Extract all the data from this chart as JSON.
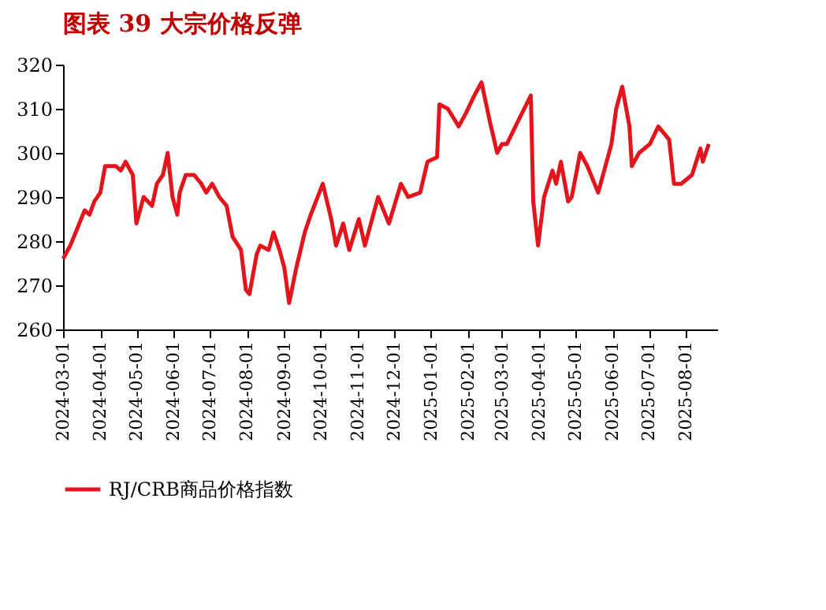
{
  "chart_data": {
    "type": "line",
    "title": "图表 39    大宗价格反弹",
    "x": [
      "2024-03-01",
      "2024-03-07",
      "2024-03-13",
      "2024-03-19",
      "2024-03-23",
      "2024-03-27",
      "2024-04-01",
      "2024-04-05",
      "2024-04-14",
      "2024-04-18",
      "2024-04-22",
      "2024-04-28",
      "2024-05-01",
      "2024-05-07",
      "2024-05-14",
      "2024-05-18",
      "2024-05-23",
      "2024-05-27",
      "2024-05-31",
      "2024-06-04",
      "2024-06-06",
      "2024-06-11",
      "2024-06-18",
      "2024-06-24",
      "2024-06-28",
      "2024-07-03",
      "2024-07-09",
      "2024-07-15",
      "2024-07-20",
      "2024-07-27",
      "2024-07-31",
      "2024-08-03",
      "2024-08-09",
      "2024-08-12",
      "2024-08-19",
      "2024-08-23",
      "2024-08-28",
      "2024-09-01",
      "2024-09-05",
      "2024-09-11",
      "2024-09-18",
      "2024-09-23",
      "2024-10-03",
      "2024-10-10",
      "2024-10-14",
      "2024-10-20",
      "2024-10-25",
      "2024-11-02",
      "2024-11-07",
      "2024-11-18",
      "2024-11-27",
      "2024-12-07",
      "2024-12-13",
      "2024-12-23",
      "2024-12-29",
      "2025-01-06",
      "2025-01-08",
      "2025-01-15",
      "2025-01-24",
      "2025-01-30",
      "2025-02-06",
      "2025-02-12",
      "2025-02-19",
      "2025-02-25",
      "2025-03-01",
      "2025-03-05",
      "2025-03-14",
      "2025-03-25",
      "2025-03-27",
      "2025-03-31",
      "2025-04-05",
      "2025-04-12",
      "2025-04-15",
      "2025-04-19",
      "2025-04-25",
      "2025-04-28",
      "2025-05-05",
      "2025-05-11",
      "2025-05-20",
      "2025-05-31",
      "2025-06-04",
      "2025-06-09",
      "2025-06-15",
      "2025-06-17",
      "2025-06-23",
      "2025-07-02",
      "2025-07-09",
      "2025-07-18",
      "2025-07-22",
      "2025-07-28",
      "2025-08-06",
      "2025-08-13",
      "2025-08-15",
      "2025-08-20"
    ],
    "series": [
      {
        "name": "RJ/CRB商品价格指数",
        "color": "#e3141c",
        "values": [
          276,
          279,
          283,
          287,
          286,
          289,
          291,
          297,
          297,
          296,
          298,
          295,
          284,
          290,
          288,
          293,
          295,
          300,
          290,
          286,
          291,
          295,
          295,
          293,
          291,
          293,
          290,
          288,
          281,
          278,
          269,
          268,
          277,
          279,
          278,
          282,
          278,
          274,
          266,
          274,
          282,
          286,
          293,
          285,
          279,
          284,
          278,
          285,
          279,
          290,
          284,
          293,
          290,
          291,
          298,
          299,
          311,
          310,
          306,
          309,
          313,
          316,
          307,
          300,
          302,
          302,
          307,
          313,
          289,
          279,
          290,
          296,
          293,
          298,
          289,
          290,
          300,
          297,
          291,
          302,
          310,
          315,
          306,
          297,
          300,
          302,
          306,
          303,
          293,
          293,
          295,
          301,
          298,
          302
        ]
      }
    ],
    "xlim": [
      "2024-03-01",
      "2025-08-27"
    ],
    "xticks": [
      "2024-03-01",
      "2024-04-01",
      "2024-05-01",
      "2024-06-01",
      "2024-07-01",
      "2024-08-01",
      "2024-09-01",
      "2024-10-01",
      "2024-11-01",
      "2024-12-01",
      "2025-01-01",
      "2025-02-01",
      "2025-03-01",
      "2025-04-01",
      "2025-05-01",
      "2025-06-01",
      "2025-07-01",
      "2025-08-01"
    ],
    "ylim": [
      260,
      320
    ],
    "yticks": [
      260,
      270,
      280,
      290,
      300,
      310,
      320
    ],
    "grid": false,
    "legend": "bottom",
    "marker": "none",
    "line_style": "solid"
  }
}
